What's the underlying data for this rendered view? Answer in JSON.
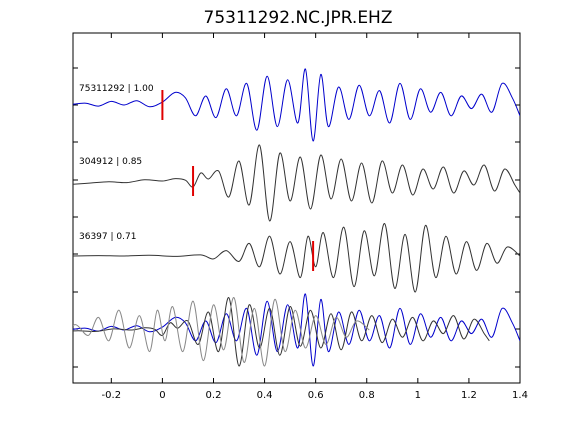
{
  "chart_data": {
    "type": "line",
    "title": "75311292.NC.JPR.EHZ",
    "xlabel": "",
    "ylabel": "",
    "xlim": [
      -0.35,
      1.4
    ],
    "xticks": [
      -0.2,
      0,
      0.2,
      0.4,
      0.6,
      0.8,
      1,
      1.2,
      1.4
    ],
    "xtick_labels": [
      "-0.2",
      "0",
      "0.2",
      "0.4",
      "0.6",
      "0.8",
      "1",
      "1.2",
      "1.4"
    ],
    "grid": false,
    "colors": {
      "primary": "#0000cc",
      "secondary": "#333333",
      "overlay_gray": "#888888",
      "pick": "#e00000"
    },
    "series": [
      {
        "label": "75311292 | 1.00",
        "color": "#0000cc",
        "pick_time": 0.0,
        "x": [
          -0.35,
          -0.3,
          -0.25,
          -0.2,
          -0.15,
          -0.1,
          -0.05,
          0.0,
          0.05,
          0.09,
          0.13,
          0.17,
          0.21,
          0.25,
          0.29,
          0.33,
          0.37,
          0.41,
          0.45,
          0.49,
          0.53,
          0.56,
          0.59,
          0.62,
          0.65,
          0.69,
          0.73,
          0.77,
          0.81,
          0.85,
          0.89,
          0.93,
          0.97,
          1.01,
          1.05,
          1.09,
          1.13,
          1.17,
          1.21,
          1.25,
          1.29,
          1.33,
          1.37,
          1.4
        ],
        "y": [
          0.02,
          0.05,
          -0.03,
          0.1,
          0.0,
          0.12,
          -0.05,
          0.08,
          0.35,
          0.2,
          -0.3,
          0.25,
          -0.35,
          0.45,
          -0.3,
          0.6,
          -0.7,
          0.8,
          -0.6,
          0.7,
          -0.5,
          1.0,
          -1.0,
          0.85,
          -0.6,
          0.5,
          -0.4,
          0.55,
          -0.3,
          0.4,
          -0.5,
          0.6,
          -0.4,
          0.45,
          -0.2,
          0.35,
          -0.3,
          0.25,
          -0.1,
          0.3,
          -0.2,
          0.6,
          0.2,
          -0.3
        ]
      },
      {
        "label": "304912 | 0.85",
        "color": "#333333",
        "pick_time": 0.12,
        "x": [
          -0.35,
          -0.28,
          -0.21,
          -0.14,
          -0.07,
          0.0,
          0.05,
          0.09,
          0.12,
          0.15,
          0.18,
          0.22,
          0.26,
          0.3,
          0.34,
          0.38,
          0.42,
          0.46,
          0.5,
          0.54,
          0.58,
          0.62,
          0.66,
          0.7,
          0.74,
          0.78,
          0.82,
          0.86,
          0.9,
          0.94,
          0.98,
          1.02,
          1.06,
          1.1,
          1.14,
          1.18,
          1.22,
          1.26,
          1.3,
          1.34,
          1.38,
          1.4
        ],
        "y": [
          -0.08,
          -0.05,
          -0.02,
          -0.04,
          0.03,
          0.0,
          0.06,
          0.02,
          -0.15,
          0.2,
          0.05,
          0.25,
          -0.4,
          0.5,
          -0.6,
          0.9,
          -1.0,
          0.7,
          -0.5,
          0.6,
          -0.7,
          0.65,
          -0.45,
          0.55,
          -0.5,
          0.45,
          -0.55,
          0.5,
          -0.3,
          0.4,
          -0.35,
          0.3,
          -0.2,
          0.35,
          -0.3,
          0.25,
          -0.1,
          0.4,
          -0.25,
          0.3,
          -0.1,
          -0.3
        ]
      },
      {
        "label": "36397 | 0.71",
        "color": "#333333",
        "pick_time": 0.59,
        "x": [
          -0.35,
          -0.25,
          -0.15,
          -0.05,
          0.05,
          0.15,
          0.2,
          0.25,
          0.3,
          0.34,
          0.38,
          0.42,
          0.46,
          0.5,
          0.54,
          0.57,
          0.6,
          0.63,
          0.67,
          0.71,
          0.75,
          0.79,
          0.83,
          0.87,
          0.91,
          0.95,
          0.99,
          1.03,
          1.07,
          1.11,
          1.15,
          1.19,
          1.23,
          1.27,
          1.31,
          1.35,
          1.4
        ],
        "y": [
          0.0,
          0.01,
          0.0,
          0.02,
          -0.01,
          0.03,
          -0.08,
          0.15,
          -0.15,
          0.35,
          -0.3,
          0.55,
          -0.5,
          0.4,
          -0.6,
          0.55,
          -0.3,
          0.65,
          -0.6,
          0.8,
          -0.85,
          0.7,
          -0.55,
          0.9,
          -0.9,
          0.6,
          -1.0,
          0.85,
          -0.6,
          0.55,
          -0.5,
          0.4,
          -0.4,
          0.35,
          -0.2,
          0.25,
          0.0
        ]
      }
    ]
  }
}
